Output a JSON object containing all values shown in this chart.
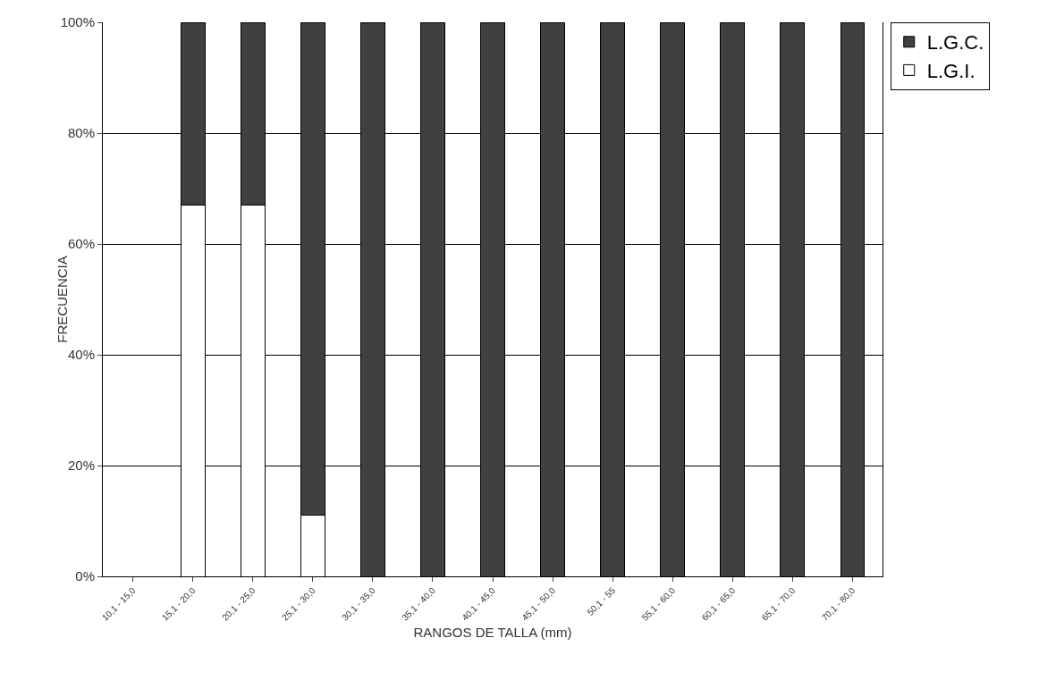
{
  "chart_data": {
    "type": "bar",
    "stacked": true,
    "xlabel": "RANGOS DE TALLA (mm)",
    "ylabel": "FRECUENCIA",
    "categories": [
      "10,1 - 15,0",
      "15,1 - 20,0",
      "20,1 - 25,0",
      "25,1 - 30,0",
      "30,1 - 35,0",
      "35,1 - 40,0",
      "40,1 - 45,0",
      "45,1 - 50,0",
      "50,1 - 55",
      "55,1 - 60,0",
      "60,1 - 65,0",
      "65,1 - 70,0",
      "70,1 - 80,0"
    ],
    "series": [
      {
        "name": "L.G.I.",
        "color": "#ffffff",
        "values": [
          null,
          67,
          67,
          11,
          0,
          0,
          0,
          0,
          0,
          0,
          0,
          0,
          0
        ]
      },
      {
        "name": "L.G.C.",
        "color": "#404040",
        "values": [
          null,
          33,
          33,
          89,
          100,
          100,
          100,
          100,
          100,
          100,
          100,
          100,
          100
        ]
      }
    ],
    "ylim": [
      0,
      100
    ],
    "yticks": [
      {
        "value": 0,
        "label": "0%"
      },
      {
        "value": 20,
        "label": "20%"
      },
      {
        "value": 40,
        "label": "40%"
      },
      {
        "value": 60,
        "label": "60%"
      },
      {
        "value": 80,
        "label": "80%"
      },
      {
        "value": 100,
        "label": "100%"
      }
    ],
    "grid": "y",
    "legend": "top right"
  }
}
